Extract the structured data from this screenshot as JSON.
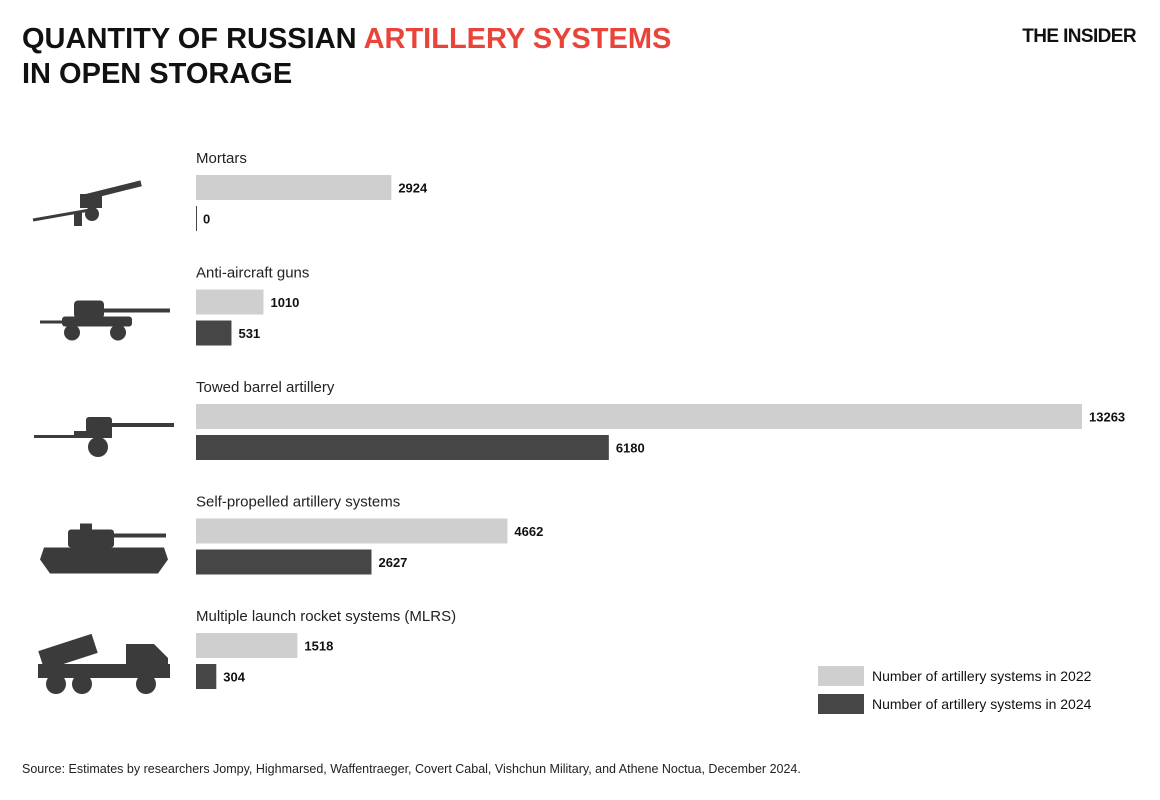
{
  "header": {
    "title_line1_part1": "QUANTITY OF RUSSIAN ",
    "title_line1_accent": "ARTILLERY SYSTEMS",
    "title_line2": "IN OPEN STORAGE",
    "brand": "THE INSIDER"
  },
  "colors": {
    "accent": "#e8443a",
    "series_2022": "#cfcfcf",
    "series_2024": "#464646"
  },
  "chart_data": {
    "type": "bar",
    "orientation": "horizontal",
    "title": "QUANTITY OF RUSSIAN ARTILLERY SYSTEMS IN OPEN STORAGE",
    "categories": [
      "Mortars",
      "Anti-aircraft guns",
      "Towed barrel artillery",
      "Self-propelled artillery systems",
      "Multiple launch rocket systems (MLRS)"
    ],
    "icons": [
      "mortar-icon",
      "anti-aircraft-gun-icon",
      "towed-artillery-icon",
      "self-propelled-artillery-icon",
      "mlrs-icon"
    ],
    "series": [
      {
        "name": "Number of artillery systems in 2022",
        "values": [
          2924,
          1010,
          13263,
          4662,
          1518
        ]
      },
      {
        "name": "Number of artillery systems in 2024",
        "values": [
          0,
          531,
          6180,
          2627,
          304
        ]
      }
    ],
    "grid": false,
    "legend_position": "bottom-right"
  },
  "legend": {
    "item_2022": "Number of artillery systems in 2022",
    "item_2024": "Number of artillery systems in 2024"
  },
  "footer": {
    "source": "Source: Estimates by researchers Jompy, Highmarsed, Waffentraeger, Covert Cabal, Vishchun Military, and Athene Noctua, December 2024."
  }
}
